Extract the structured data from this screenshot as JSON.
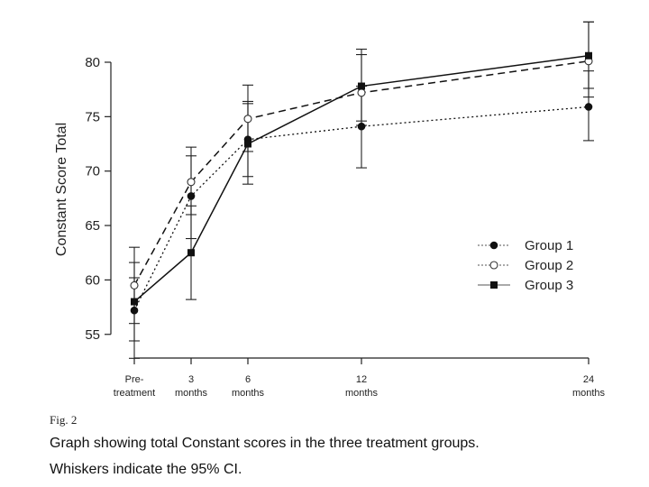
{
  "figure": {
    "label": "Fig. 2",
    "caption_lines": [
      "Graph showing total Constant scores in the three treatment groups.",
      "Whiskers indicate the 95% CI."
    ]
  },
  "chart_data": {
    "type": "line",
    "title": "",
    "xlabel": "",
    "ylabel": "Constant Score Total",
    "x": [
      0,
      3,
      6,
      12,
      24
    ],
    "x_tick_labels": [
      [
        "Pre-",
        "treatment"
      ],
      [
        "3",
        "months"
      ],
      [
        "6",
        "months"
      ],
      [
        "12",
        "months"
      ],
      [
        "24",
        "months"
      ]
    ],
    "ylim": [
      52.5,
      82.5
    ],
    "y_ticks": [
      55,
      60,
      65,
      70,
      75,
      80
    ],
    "grid": false,
    "legend_position": "right",
    "series": [
      {
        "name": "Group 1",
        "marker": "filled-circle",
        "line_style": "dotted",
        "values": [
          57.2,
          67.7,
          72.9,
          74.1,
          75.9
        ],
        "ci_low": [
          54.4,
          63.8,
          69.5,
          70.3,
          72.8
        ],
        "ci_high": [
          60.2,
          71.4,
          76.2,
          77.8,
          79.2
        ]
      },
      {
        "name": "Group 2",
        "marker": "open-circle",
        "line_style": "dashed",
        "values": [
          59.5,
          69.0,
          74.8,
          77.2,
          80.1
        ],
        "ci_low": [
          56.0,
          66.0,
          71.8,
          74.2,
          77.6
        ],
        "ci_high": [
          63.0,
          72.2,
          77.9,
          80.7,
          83.7
        ]
      },
      {
        "name": "Group 3",
        "marker": "filled-square",
        "line_style": "solid",
        "values": [
          58.0,
          62.5,
          72.5,
          77.8,
          80.6
        ],
        "ci_low": [
          52.8,
          58.2,
          68.8,
          74.6,
          76.8
        ],
        "ci_high": [
          61.6,
          66.8,
          76.4,
          81.2,
          83.7
        ]
      }
    ]
  }
}
